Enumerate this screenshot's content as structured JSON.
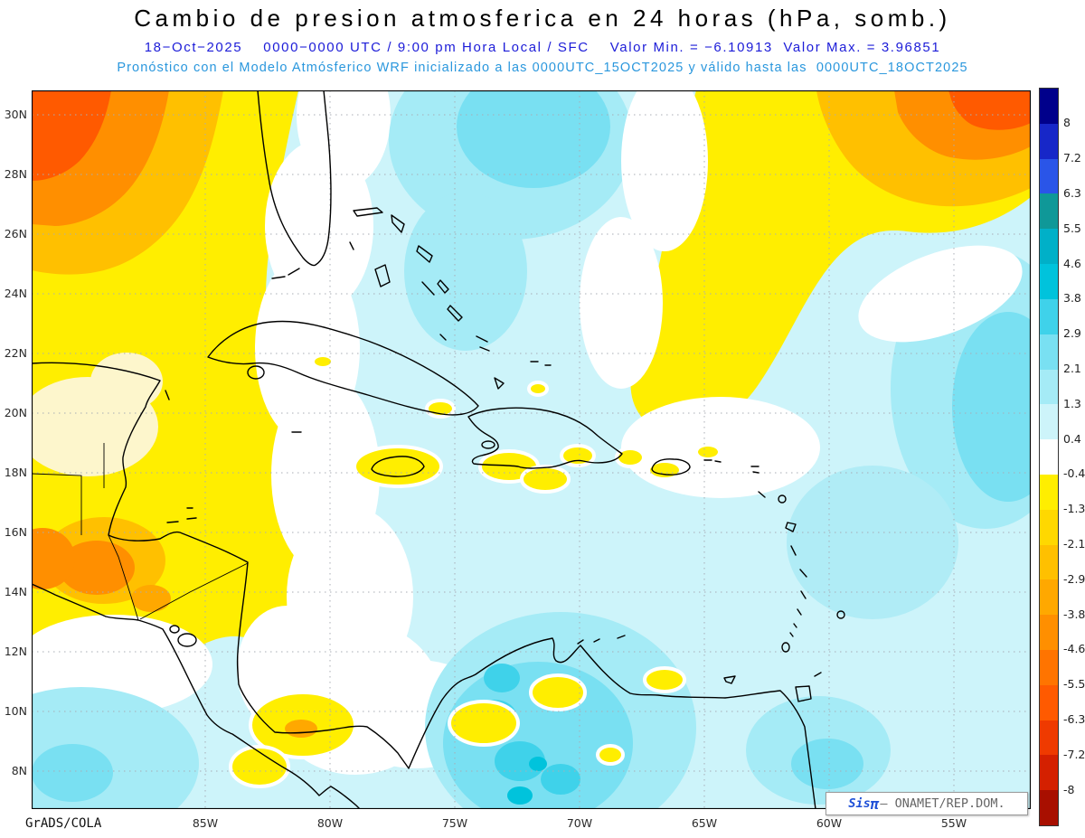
{
  "header": {
    "title": "Cambio de presion atmosferica en 24 horas (hPa, somb.)",
    "subtitle_line1": "18−Oct−2025    0000−0000 UTC / 9:00 pm Hora Local / SFC    Valor Min. = −6.10913  Valor Max. = 3.96851",
    "subtitle_line2": "Pronóstico con el Modelo Atmósferico WRF inicializado a las 0000UTC_15OCT2025 y válido hasta las  0000UTC_18OCT2025"
  },
  "map": {
    "lat_labels": [
      "30N",
      "28N",
      "26N",
      "24N",
      "22N",
      "20N",
      "18N",
      "16N",
      "14N",
      "12N",
      "10N",
      "8N"
    ],
    "lon_labels": [
      "85W",
      "80W",
      "75W",
      "70W",
      "65W",
      "60W",
      "55W"
    ]
  },
  "colorbar": {
    "tick_labels": [
      "8",
      "7.2",
      "6.3",
      "5.5",
      "4.6",
      "3.8",
      "2.9",
      "2.1",
      "1.3",
      "0.4",
      "-0.4",
      "-1.3",
      "-2.1",
      "-2.9",
      "-3.8",
      "-4.6",
      "-5.5",
      "-6.3",
      "-7.2",
      "-8"
    ],
    "colors": [
      "#00008b",
      "#1727c8",
      "#2a55e8",
      "#0f9898",
      "#00b0c8",
      "#00c3dc",
      "#3fd2ea",
      "#79e0f2",
      "#a5ebf6",
      "#cdf4fa",
      "#ffffff",
      "#ffee00",
      "#ffd800",
      "#ffc000",
      "#ffa800",
      "#ff8f00",
      "#ff7400",
      "#ff5a00",
      "#ef3a00",
      "#d42000",
      "#a80f00"
    ]
  },
  "footer": {
    "credit": "GrADS/COLA"
  },
  "badge": {
    "brand": "Sis",
    "pi": "π",
    "rest": "– ONAMET/REP.DOM."
  }
}
